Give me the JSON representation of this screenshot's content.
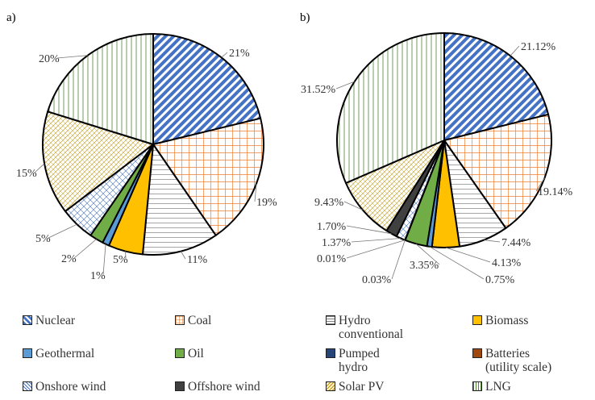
{
  "chart_data": [
    {
      "type": "pie",
      "title": "a)",
      "slices": [
        {
          "key": "nuclear",
          "label": "21%",
          "value": 21
        },
        {
          "key": "coal",
          "label": "19%",
          "value": 19
        },
        {
          "key": "hydro",
          "label": "11%",
          "value": 11
        },
        {
          "key": "biomass",
          "label": "5%",
          "value": 5
        },
        {
          "key": "geothermal",
          "label": "1%",
          "value": 1
        },
        {
          "key": "oil",
          "label": "2%",
          "value": 2
        },
        {
          "key": "onshore",
          "label": "5%",
          "value": 5
        },
        {
          "key": "solar",
          "label": "15%",
          "value": 15
        },
        {
          "key": "lng",
          "label": "20%",
          "value": 20
        }
      ]
    },
    {
      "type": "pie",
      "title": "b)",
      "slices": [
        {
          "key": "nuclear",
          "label": "21.12%",
          "value": 21.12
        },
        {
          "key": "coal",
          "label": "19.14%",
          "value": 19.14
        },
        {
          "key": "hydro",
          "label": "7.44%",
          "value": 7.44
        },
        {
          "key": "biomass",
          "label": "4.13%",
          "value": 4.13
        },
        {
          "key": "geothermal",
          "label": "0.75%",
          "value": 0.75
        },
        {
          "key": "oil",
          "label": "3.35%",
          "value": 3.35
        },
        {
          "key": "pumped",
          "label": "0.03%",
          "value": 0.03
        },
        {
          "key": "batteries",
          "label": "0.01%",
          "value": 0.01
        },
        {
          "key": "onshore",
          "label": "1.37%",
          "value": 1.37
        },
        {
          "key": "offshore",
          "label": "1.70%",
          "value": 1.7
        },
        {
          "key": "solar",
          "label": "9.43%",
          "value": 9.43
        },
        {
          "key": "lng",
          "label": "31.52%",
          "value": 31.52
        }
      ]
    }
  ],
  "legend": [
    {
      "key": "nuclear",
      "label": "Nuclear"
    },
    {
      "key": "coal",
      "label": "Coal"
    },
    {
      "key": "hydro",
      "label": "Hydro\nconventional"
    },
    {
      "key": "biomass",
      "label": "Biomass"
    },
    {
      "key": "geothermal",
      "label": "Geothermal"
    },
    {
      "key": "oil",
      "label": "Oil"
    },
    {
      "key": "pumped",
      "label": "Pumped\nhydro"
    },
    {
      "key": "batteries",
      "label": "Batteries\n(utility scale)"
    },
    {
      "key": "onshore",
      "label": "Onshore wind"
    },
    {
      "key": "offshore",
      "label": "Offshore wind"
    },
    {
      "key": "solar",
      "label": "Solar PV"
    },
    {
      "key": "lng",
      "label": "LNG"
    }
  ],
  "colors": {
    "nuclear": "#4472c4",
    "coal": "#ed7d31",
    "hydro": "#7f7f7f",
    "biomass": "#ffc000",
    "geothermal": "#5b9bd5",
    "oil": "#70ad47",
    "pumped": "#264478",
    "batteries": "#9e480e",
    "onshore": "#4472c4",
    "offshore": "#404040",
    "solar": "#bf9000",
    "lng": "#548235"
  }
}
